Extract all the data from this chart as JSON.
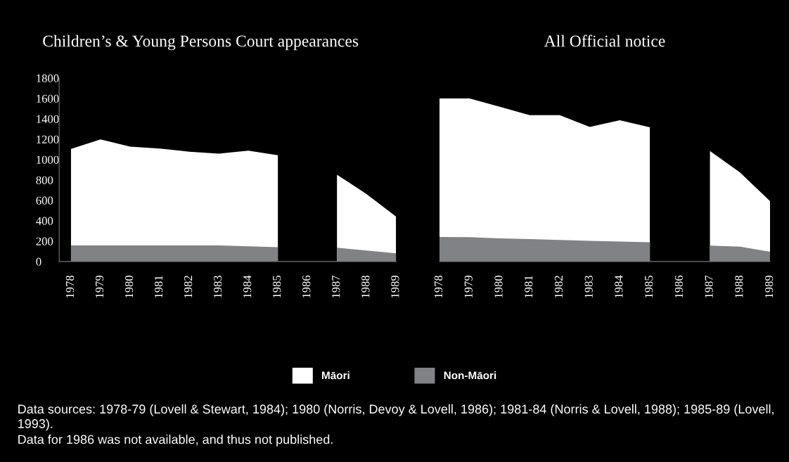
{
  "chart_data": [
    {
      "type": "area",
      "title": "Children’s & Young Persons Court appearances",
      "categories": [
        "1978",
        "1979",
        "1980",
        "1981",
        "1982",
        "1983",
        "1984",
        "1985",
        "1986",
        "1987",
        "1988",
        "1989"
      ],
      "ylim": [
        0,
        1800
      ],
      "yticks": [
        0,
        200,
        400,
        600,
        800,
        1000,
        1200,
        1400,
        1600,
        1800
      ],
      "grid": false,
      "legend": "bottom",
      "series": [
        {
          "name": "Māori",
          "color": "#ffffff",
          "values": [
            1105,
            1198,
            1128,
            1108,
            1078,
            1058,
            1088,
            1043,
            null,
            852,
            662,
            441
          ]
        },
        {
          "name": "Non-Māori",
          "color": "#808285",
          "values": [
            158,
            158,
            158,
            158,
            158,
            158,
            150,
            140,
            null,
            135,
            108,
            80
          ]
        }
      ],
      "annotations": [
        "Data sources: 1978-79 (Lovell & Stewart, 1984); 1980 (Norris, Devoy & Lovell, 1986); 1981-84 (Norris & Lovell, 1988); 1985-89 (Lovell, 1993).",
        "Data for 1986 was not available, and thus not published."
      ]
    },
    {
      "type": "area",
      "title": "All Official notice",
      "categories": [
        "1978",
        "1979",
        "1980",
        "1981",
        "1982",
        "1983",
        "1984",
        "1985",
        "1986",
        "1987",
        "1988",
        "1989"
      ],
      "ylim": [
        0,
        1800
      ],
      "tick_labels": "x",
      "grid": false,
      "series": [
        {
          "color": "#ffffff",
          "values": [
            1600,
            1600,
            1519,
            1436,
            1436,
            1320,
            1387,
            1317,
            null,
            1084,
            873,
            593
          ]
        },
        {
          "color": "#808285",
          "values": [
            240,
            238,
            226,
            220,
            211,
            203,
            195,
            188,
            null,
            156,
            146,
            96
          ]
        }
      ]
    }
  ]
}
